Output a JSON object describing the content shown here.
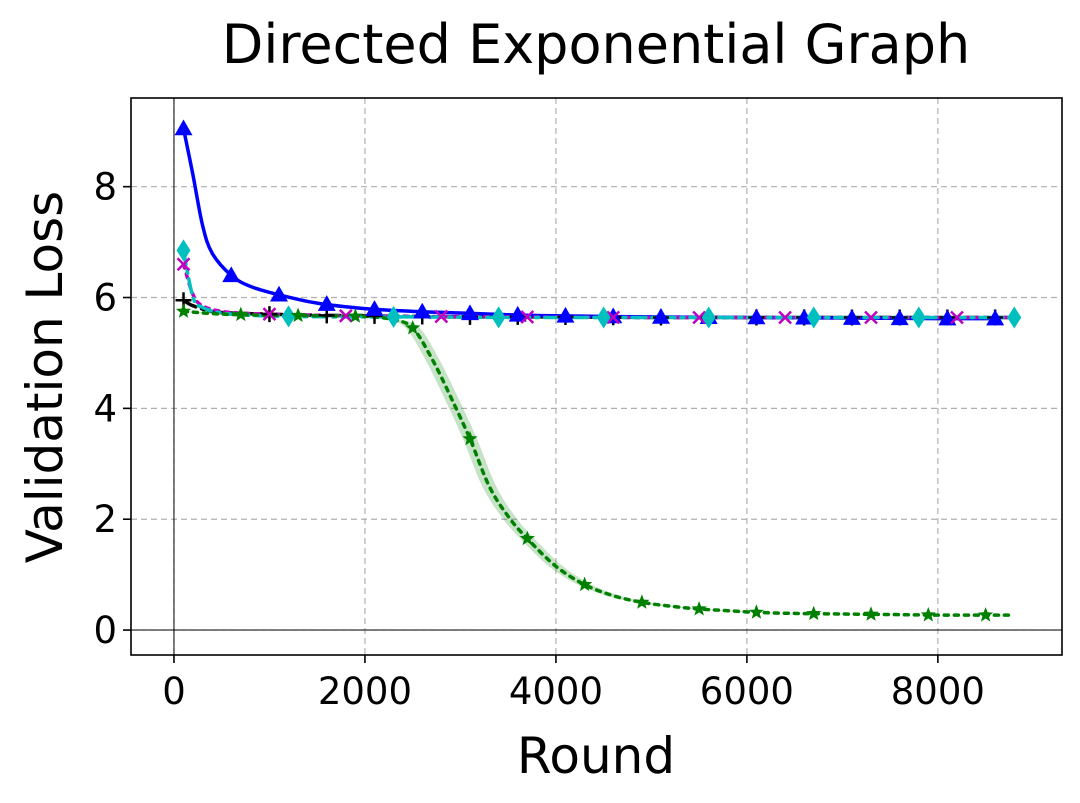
{
  "chart_data": {
    "type": "line",
    "title": "Directed Exponential Graph",
    "xlabel": "Round",
    "ylabel": "Validation Loss",
    "xlim": [
      -450,
      9300
    ],
    "ylim": [
      -0.45,
      9.6
    ],
    "xticks": [
      0,
      2000,
      4000,
      6000,
      8000
    ],
    "yticks": [
      0,
      2,
      4,
      6,
      8
    ],
    "grid": true,
    "grid_style": "dashed",
    "reference_lines": {
      "x": 0,
      "y": 0
    },
    "series": [
      {
        "color": "#000000",
        "marker": "plus",
        "line": "dashdot",
        "band": false,
        "x": [
          100,
          200,
          400,
          600,
          1000,
          1500,
          2000,
          2500,
          3000,
          4000,
          5000,
          6000,
          7000,
          8000,
          8800
        ],
        "y": [
          5.95,
          5.85,
          5.75,
          5.72,
          5.7,
          5.68,
          5.67,
          5.66,
          5.65,
          5.65,
          5.64,
          5.64,
          5.64,
          5.64,
          5.64
        ],
        "marker_x": [
          100,
          1000,
          1600,
          2100,
          2600,
          3100,
          3600,
          4100,
          4600,
          5100,
          5600,
          6100,
          6600,
          7100,
          7600,
          8100,
          8600
        ]
      },
      {
        "color": "#0000ff",
        "marker": "triangle",
        "line": "solid",
        "band": false,
        "x": [
          100,
          200,
          300,
          400,
          600,
          800,
          1100,
          1500,
          2000,
          2500,
          3000,
          3500,
          4000,
          5000,
          6000,
          7000,
          8000,
          8600
        ],
        "y": [
          9.05,
          8.2,
          7.3,
          6.8,
          6.4,
          6.2,
          6.05,
          5.9,
          5.8,
          5.75,
          5.72,
          5.69,
          5.67,
          5.65,
          5.64,
          5.63,
          5.62,
          5.62
        ],
        "marker_x": [
          100,
          600,
          1100,
          1600,
          2100,
          2600,
          3100,
          3600,
          4100,
          4600,
          5100,
          5600,
          6100,
          6600,
          7100,
          7600,
          8100,
          8600
        ]
      },
      {
        "color": "#c000c0",
        "marker": "x",
        "line": "dotted",
        "band": false,
        "x": [
          100,
          200,
          300,
          500,
          800,
          1200,
          1800,
          2500,
          3500,
          5000,
          6500,
          8000,
          8800
        ],
        "y": [
          6.6,
          6.05,
          5.85,
          5.75,
          5.71,
          5.69,
          5.67,
          5.66,
          5.65,
          5.64,
          5.64,
          5.64,
          5.64
        ],
        "marker_x": [
          100,
          1000,
          1800,
          2800,
          3700,
          4600,
          5500,
          6400,
          7300,
          8200
        ]
      },
      {
        "color": "#00bfbf",
        "marker": "diamond",
        "line": "dashdot",
        "band": false,
        "x": [
          100,
          200,
          300,
          500,
          800,
          1200,
          1800,
          2500,
          3500,
          5000,
          6500,
          8000,
          8800
        ],
        "y": [
          6.85,
          6.0,
          5.82,
          5.72,
          5.68,
          5.66,
          5.65,
          5.65,
          5.64,
          5.64,
          5.64,
          5.64,
          5.64
        ],
        "marker_x": [
          100,
          1200,
          2300,
          3400,
          4500,
          5600,
          6700,
          7800,
          8800
        ]
      },
      {
        "color": "#008000",
        "marker": "star",
        "line": "dotted",
        "band": true,
        "x": [
          100,
          500,
          1000,
          1500,
          2000,
          2300,
          2500,
          2700,
          2900,
          3100,
          3300,
          3500,
          3700,
          4000,
          4300,
          4600,
          4900,
          5200,
          5500,
          5800,
          6100,
          6500,
          7000,
          7500,
          8000,
          8500,
          8800
        ],
        "y": [
          5.75,
          5.7,
          5.68,
          5.67,
          5.66,
          5.6,
          5.45,
          4.9,
          4.2,
          3.45,
          2.6,
          2.05,
          1.65,
          1.15,
          0.82,
          0.62,
          0.5,
          0.43,
          0.38,
          0.35,
          0.32,
          0.3,
          0.29,
          0.28,
          0.27,
          0.27,
          0.27
        ],
        "marker_x": [
          100,
          700,
          1300,
          1900,
          2500,
          3100,
          3700,
          4300,
          4900,
          5500,
          6100,
          6700,
          7300,
          7900,
          8500
        ]
      }
    ]
  }
}
